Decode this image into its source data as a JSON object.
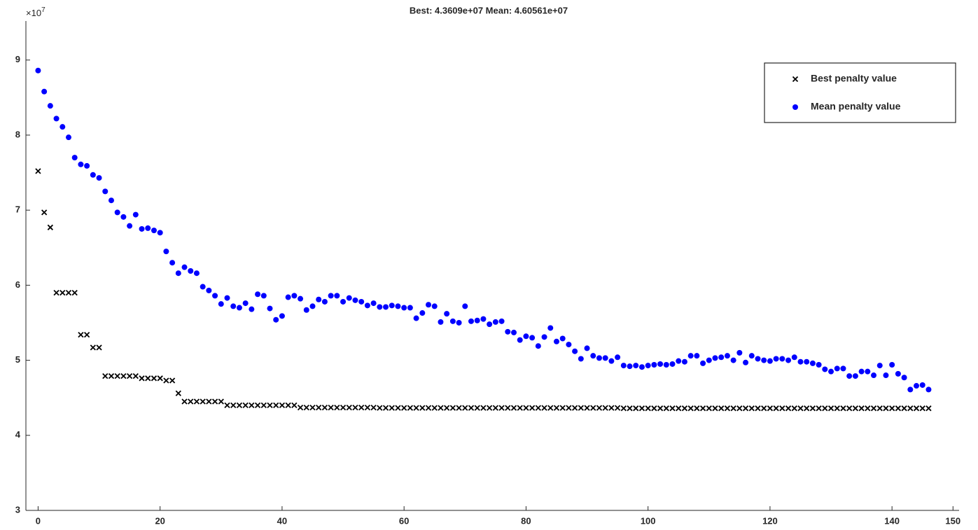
{
  "chart_data": {
    "type": "scatter",
    "title": "Best:  4.3609e+07  Mean: 4.60561e+07",
    "y_multiplier": {
      "base": "×10",
      "exponent": "7"
    },
    "xlim": [
      -2,
      151
    ],
    "xticks": [
      0,
      20,
      40,
      60,
      80,
      100,
      120,
      140,
      150
    ],
    "ylim": [
      3,
      9.52
    ],
    "yticks": [
      3,
      4,
      5,
      6,
      7,
      8,
      9
    ],
    "legend": "northeast",
    "x": [
      0,
      1,
      2,
      3,
      4,
      5,
      6,
      7,
      8,
      9,
      10,
      11,
      12,
      13,
      14,
      15,
      16,
      17,
      18,
      19,
      20,
      21,
      22,
      23,
      24,
      25,
      26,
      27,
      28,
      29,
      30,
      31,
      32,
      33,
      34,
      35,
      36,
      37,
      38,
      39,
      40,
      41,
      42,
      43,
      44,
      45,
      46,
      47,
      48,
      49,
      50,
      51,
      52,
      53,
      54,
      55,
      56,
      57,
      58,
      59,
      60,
      61,
      62,
      63,
      64,
      65,
      66,
      67,
      68,
      69,
      70,
      71,
      72,
      73,
      74,
      75,
      76,
      77,
      78,
      79,
      80,
      81,
      82,
      83,
      84,
      85,
      86,
      87,
      88,
      89,
      90,
      91,
      92,
      93,
      94,
      95,
      96,
      97,
      98,
      99,
      100,
      101,
      102,
      103,
      104,
      105,
      106,
      107,
      108,
      109,
      110,
      111,
      112,
      113,
      114,
      115,
      116,
      117,
      118,
      119,
      120,
      121,
      122,
      123,
      124,
      125,
      126,
      127,
      128,
      129,
      130,
      131,
      132,
      133,
      134,
      135,
      136,
      137,
      138,
      139,
      140,
      141,
      142,
      143,
      144,
      145,
      146
    ],
    "series": [
      {
        "name": "Best penalty value",
        "color": "#000000",
        "marker": "x",
        "values": [
          7.52,
          6.97,
          6.77,
          5.9,
          5.9,
          5.9,
          5.9,
          5.34,
          5.34,
          5.17,
          5.17,
          4.79,
          4.79,
          4.79,
          4.79,
          4.79,
          4.79,
          4.76,
          4.76,
          4.76,
          4.76,
          4.73,
          4.73,
          4.56,
          4.45,
          4.45,
          4.45,
          4.45,
          4.45,
          4.45,
          4.45,
          4.4,
          4.4,
          4.4,
          4.4,
          4.4,
          4.4,
          4.4,
          4.4,
          4.4,
          4.4,
          4.4,
          4.4,
          4.37,
          4.37,
          4.37,
          4.37,
          4.37,
          4.37,
          4.37,
          4.37,
          4.37,
          4.37,
          4.37,
          4.37,
          4.37,
          4.365,
          4.365,
          4.365,
          4.365,
          4.365,
          4.365,
          4.365,
          4.365,
          4.365,
          4.365,
          4.365,
          4.365,
          4.365,
          4.365,
          4.365,
          4.365,
          4.365,
          4.365,
          4.365,
          4.365,
          4.365,
          4.365,
          4.365,
          4.365,
          4.365,
          4.365,
          4.365,
          4.365,
          4.365,
          4.365,
          4.365,
          4.365,
          4.365,
          4.365,
          4.365,
          4.365,
          4.365,
          4.365,
          4.365,
          4.365,
          4.36,
          4.36,
          4.36,
          4.36,
          4.36,
          4.36,
          4.36,
          4.36,
          4.36,
          4.36,
          4.36,
          4.36,
          4.36,
          4.36,
          4.36,
          4.36,
          4.36,
          4.36,
          4.36,
          4.36,
          4.36,
          4.36,
          4.36,
          4.36,
          4.36,
          4.36,
          4.36,
          4.36,
          4.36,
          4.36,
          4.36,
          4.36,
          4.36,
          4.36,
          4.36,
          4.36,
          4.36,
          4.36,
          4.36,
          4.36,
          4.36,
          4.36,
          4.36,
          4.36,
          4.36,
          4.36,
          4.36,
          4.36,
          4.36,
          4.36,
          4.36
        ]
      },
      {
        "name": "Mean penalty value",
        "color": "#0000ff",
        "marker": "dot",
        "values": [
          8.86,
          8.58,
          8.39,
          8.22,
          8.11,
          7.97,
          7.7,
          7.61,
          7.59,
          7.47,
          7.43,
          7.25,
          7.13,
          6.97,
          6.91,
          6.79,
          6.94,
          6.75,
          6.76,
          6.73,
          6.7,
          6.45,
          6.3,
          6.16,
          6.24,
          6.19,
          6.16,
          5.98,
          5.93,
          5.86,
          5.75,
          5.83,
          5.72,
          5.7,
          5.76,
          5.68,
          5.88,
          5.86,
          5.69,
          5.54,
          5.59,
          5.84,
          5.86,
          5.82,
          5.67,
          5.72,
          5.81,
          5.78,
          5.86,
          5.86,
          5.78,
          5.83,
          5.8,
          5.78,
          5.73,
          5.76,
          5.71,
          5.71,
          5.73,
          5.72,
          5.7,
          5.7,
          5.56,
          5.63,
          5.74,
          5.72,
          5.51,
          5.62,
          5.52,
          5.5,
          5.72,
          5.52,
          5.53,
          5.55,
          5.48,
          5.51,
          5.52,
          5.38,
          5.37,
          5.27,
          5.32,
          5.3,
          5.19,
          5.31,
          5.43,
          5.25,
          5.29,
          5.21,
          5.12,
          5.02,
          5.16,
          5.06,
          5.03,
          5.03,
          4.99,
          5.04,
          4.93,
          4.92,
          4.93,
          4.91,
          4.93,
          4.94,
          4.95,
          4.94,
          4.95,
          4.99,
          4.98,
          5.06,
          5.06,
          4.96,
          5.0,
          5.03,
          5.04,
          5.06,
          5.0,
          5.1,
          4.97,
          5.06,
          5.02,
          5.0,
          4.99,
          5.02,
          5.02,
          5.0,
          5.04,
          4.98,
          4.98,
          4.96,
          4.94,
          4.88,
          4.85,
          4.89,
          4.89,
          4.79,
          4.79,
          4.85,
          4.85,
          4.8,
          4.93,
          4.8,
          4.94,
          4.82,
          4.77,
          4.61,
          4.66,
          4.67,
          4.61
        ]
      }
    ]
  }
}
